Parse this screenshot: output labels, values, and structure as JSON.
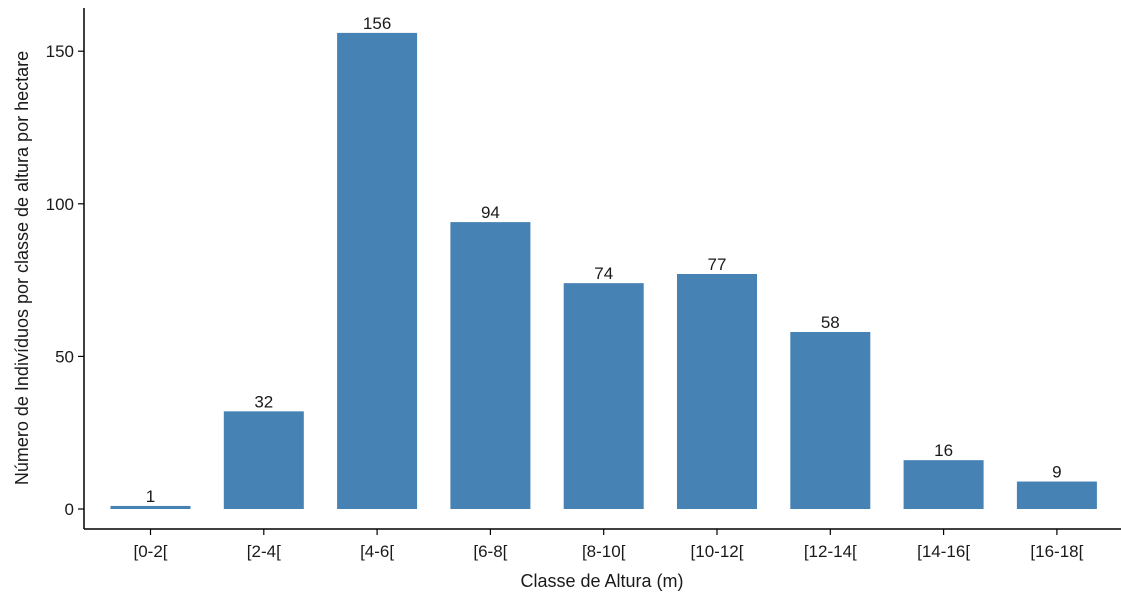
{
  "chart_data": {
    "type": "bar",
    "categories": [
      "[0-2[",
      "[2-4[",
      "[4-6[",
      "[6-8[",
      "[8-10[",
      "[10-12[",
      "[12-14[",
      "[14-16[",
      "[16-18["
    ],
    "values": [
      1,
      32,
      156,
      94,
      74,
      77,
      58,
      16,
      9
    ],
    "data_labels": [
      "1",
      "32",
      "156",
      "94",
      "74",
      "77",
      "58",
      "16",
      "9"
    ],
    "title": "",
    "xlabel": "Classe de Altura (m)",
    "ylabel": "Número de Indivíduos por classe de altura por hectare",
    "ylim": [
      0,
      163
    ],
    "yticks": [
      0,
      50,
      100,
      150
    ],
    "ytick_labels": [
      "0",
      "50",
      "100",
      "150"
    ],
    "grid": false,
    "legend": "none",
    "bar_color": "#4682B4",
    "axis_color": "#000000",
    "text_color": "#1a1a1a"
  }
}
